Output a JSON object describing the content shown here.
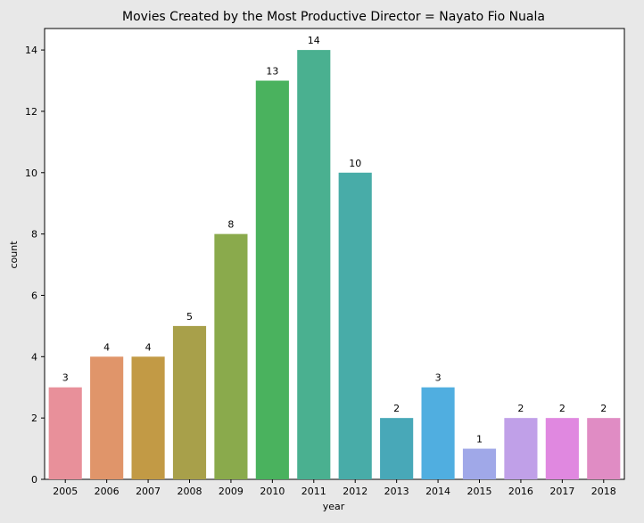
{
  "chart_data": {
    "type": "bar",
    "title": "Movies Created by the Most Productive Director = Nayato Fio Nuala",
    "xlabel": "year",
    "ylabel": "count",
    "categories": [
      "2005",
      "2006",
      "2007",
      "2008",
      "2009",
      "2010",
      "2011",
      "2012",
      "2013",
      "2014",
      "2015",
      "2016",
      "2017",
      "2018"
    ],
    "values": [
      3,
      4,
      4,
      5,
      8,
      13,
      14,
      10,
      2,
      3,
      1,
      2,
      2,
      2
    ],
    "data_labels": [
      "3",
      "4",
      "4",
      "5",
      "8",
      "13",
      "14",
      "10",
      "2",
      "3",
      "1",
      "2",
      "2",
      "2"
    ],
    "ylim": [
      0,
      14.7
    ],
    "yticks": [
      0,
      2,
      4,
      6,
      8,
      10,
      12,
      14
    ],
    "ytick_labels": [
      "0",
      "2",
      "4",
      "6",
      "8",
      "10",
      "12",
      "14"
    ],
    "grid": false,
    "legend": "none",
    "colors": [
      "#e8909a",
      "#e0956a",
      "#c29a45",
      "#a8a04a",
      "#8aaa4c",
      "#4ab25e",
      "#4ab090",
      "#48aca8",
      "#48a8b8",
      "#50aee0",
      "#a0a8e8",
      "#c0a0e8",
      "#e088e0",
      "#e08cc4"
    ],
    "background": "#e8e8e8",
    "plot_background": "#ffffff"
  }
}
